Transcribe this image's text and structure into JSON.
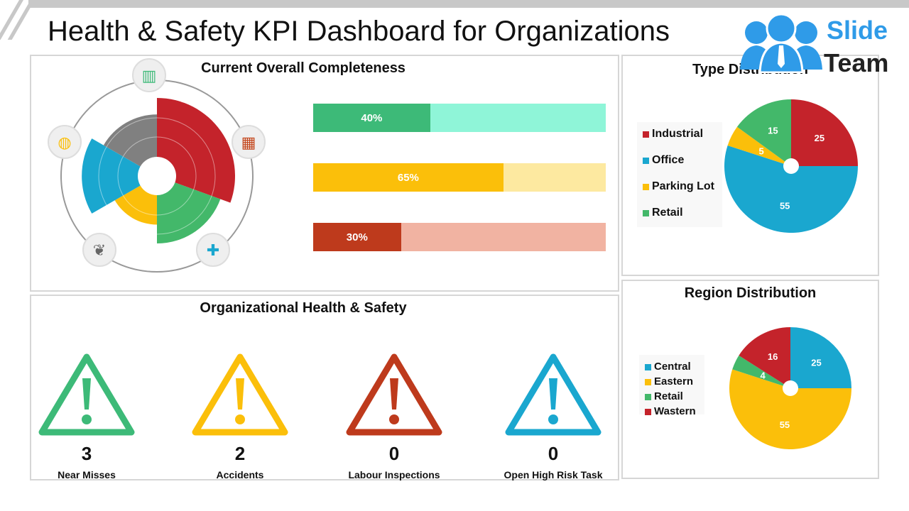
{
  "header": {
    "title": "Health & Safety KPI Dashboard for Organizations",
    "logo": {
      "line1": "Slide",
      "line2": "Team"
    }
  },
  "completeness": {
    "title": "Current Overall Completeness",
    "bars": [
      {
        "label": "40%",
        "value": 40,
        "fill": "#3dba78",
        "track": "#8ff5d8"
      },
      {
        "label": "65%",
        "value": 65,
        "fill": "#fbbf0a",
        "track": "#fde9a0"
      },
      {
        "label": "30%",
        "value": 30,
        "fill": "#be3a1c",
        "track": "#f1b3a2"
      }
    ],
    "polar": {
      "segments": [
        {
          "color": "#c4232b",
          "relative_value": 100
        },
        {
          "color": "#43b86a",
          "relative_value": 82
        },
        {
          "color": "#fbbf0a",
          "relative_value": 50
        },
        {
          "color": "#1aa7cf",
          "relative_value": 95
        },
        {
          "color": "#808080",
          "relative_value": 72
        }
      ],
      "icons": [
        "binders-icon",
        "hospital-building-icon",
        "first-aid-kit-icon",
        "leaf-icon",
        "globe-icon"
      ]
    }
  },
  "org": {
    "title": "Organizational Health & Safety",
    "kpis": [
      {
        "value": "3",
        "label": "Near Misses",
        "color": "#3dba78"
      },
      {
        "value": "2",
        "label": "Accidents",
        "color": "#fbbf0a"
      },
      {
        "value": "0",
        "label": "Labour Inspections",
        "color": "#be3a1c"
      },
      {
        "value": "0",
        "label": "Open High Risk Task",
        "color": "#1aa7cf"
      }
    ]
  },
  "chart_data": [
    {
      "type": "pie",
      "title": "Type Distribution",
      "legend": "left",
      "categories": [
        "Industrial",
        "Office",
        "Parking Lot",
        "Retail"
      ],
      "values": [
        25,
        55,
        5,
        15
      ],
      "colors": [
        "#c4232b",
        "#1aa7cf",
        "#fbbf0a",
        "#43b86a"
      ]
    },
    {
      "type": "pie",
      "title": "Region Distribution",
      "legend": "left",
      "categories": [
        "Central",
        "Eastern",
        "Retail",
        "Wastern"
      ],
      "values": [
        25,
        55,
        4,
        16
      ],
      "colors": [
        "#1aa7cf",
        "#fbbf0a",
        "#43b86a",
        "#c4232b"
      ]
    }
  ]
}
